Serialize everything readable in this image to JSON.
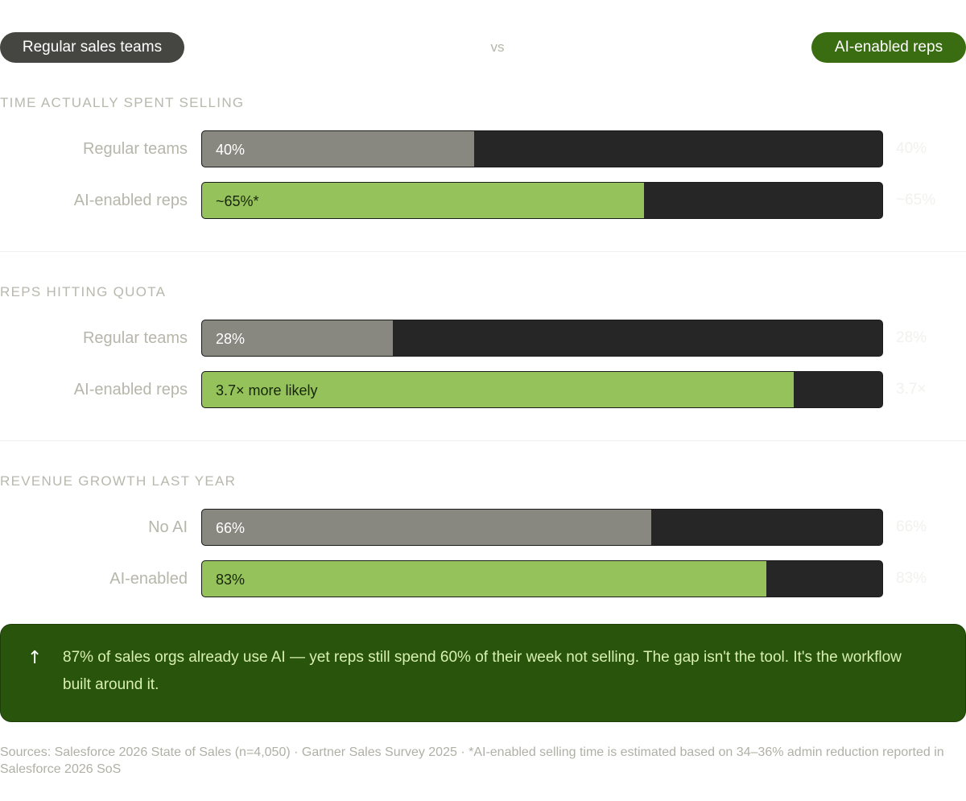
{
  "header": {
    "left_label": "Regular sales teams",
    "vs_label": "vs",
    "right_label": "AI-enabled reps"
  },
  "colors": {
    "regular_pill": "#454541",
    "ai_pill": "#3a6d12",
    "regular_bar": "#888880",
    "ai_bar": "#95c25a",
    "track": "#262626",
    "callout_bg": "#28540c"
  },
  "chart_data": {
    "type": "bar",
    "orientation": "horizontal",
    "sections": [
      {
        "title": "TIME ACTUALLY SPENT SELLING",
        "rows": [
          {
            "label": "Regular teams",
            "value": 40,
            "bar_text": "40%",
            "side_value": "40%",
            "kind": "regular"
          },
          {
            "label": "AI-enabled reps",
            "value": 65,
            "bar_text": "~65%*",
            "side_value": "~65%",
            "kind": "ai"
          }
        ]
      },
      {
        "title": "REPS HITTING QUOTA",
        "rows": [
          {
            "label": "Regular teams",
            "value": 28,
            "bar_text": "28%",
            "side_value": "28%",
            "kind": "regular"
          },
          {
            "label": "AI-enabled reps",
            "value": 87,
            "bar_text": "3.7× more likely",
            "side_value": "3.7×",
            "kind": "ai"
          }
        ]
      },
      {
        "title": "REVENUE GROWTH LAST YEAR",
        "rows": [
          {
            "label": "No AI",
            "value": 66,
            "bar_text": "66%",
            "side_value": "66%",
            "kind": "regular"
          },
          {
            "label": "AI-enabled",
            "value": 83,
            "bar_text": "83%",
            "side_value": "83%",
            "kind": "ai"
          }
        ]
      }
    ],
    "xlim": [
      0,
      100
    ]
  },
  "callout": {
    "icon": "up-arrow-icon",
    "text": "87% of sales orgs already use AI — yet reps still spend 60% of their week not selling. The gap isn't the tool. It's the workflow built around it."
  },
  "footer": {
    "sources": "Sources: Salesforce 2026 State of Sales (n=4,050) · Gartner Sales Survey 2025 · *AI-enabled selling time is estimated based on 34–36% admin reduction reported in Salesforce 2026 SoS"
  }
}
